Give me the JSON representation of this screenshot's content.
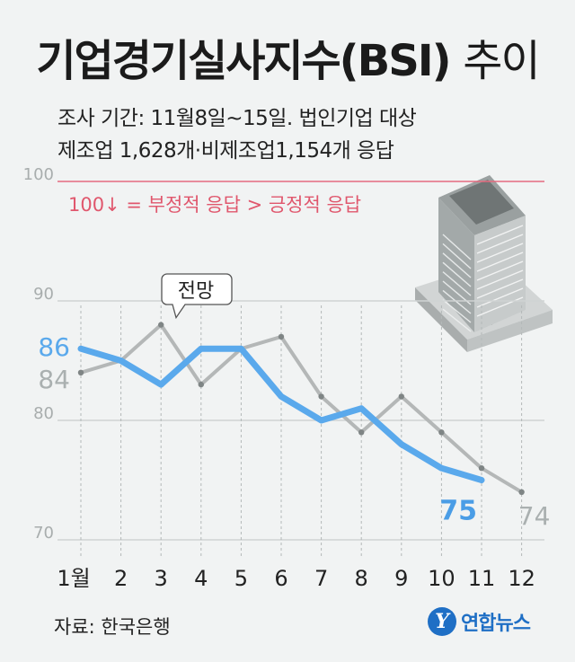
{
  "title_main": "기업경기실사지수(BSI)",
  "title_suffix": "추이",
  "subtitle_line1": "조사 기간: 11월8일~15일. 법인기업 대상",
  "subtitle_line2": "제조업 1,628개·비제조업1,154개 응답",
  "source": "자료: 한국은행",
  "logo_text": "연합뉴스",
  "chart_data": {
    "type": "line",
    "categories": [
      "1월",
      "2",
      "3",
      "4",
      "5",
      "6",
      "7",
      "8",
      "9",
      "10",
      "11",
      "12"
    ],
    "ylim": [
      70,
      100
    ],
    "yticks": [
      70,
      80,
      90,
      100
    ],
    "reference_line": {
      "value": 100,
      "label": "100↓ = 부정적 응답 > 긍정적 응답"
    },
    "callout_label": "전망",
    "series": [
      {
        "name": "전망",
        "color": "#b4b7b7",
        "values": [
          84,
          85,
          88,
          83,
          86,
          87,
          82,
          79,
          82,
          79,
          76,
          74
        ],
        "start_label": "84",
        "end_label": "74"
      },
      {
        "name": "",
        "color": "#5aa9ec",
        "values": [
          86,
          85,
          83,
          86,
          86,
          82,
          80,
          81,
          78,
          76,
          75,
          null
        ],
        "start_label": "86",
        "end_label": "75"
      }
    ]
  }
}
